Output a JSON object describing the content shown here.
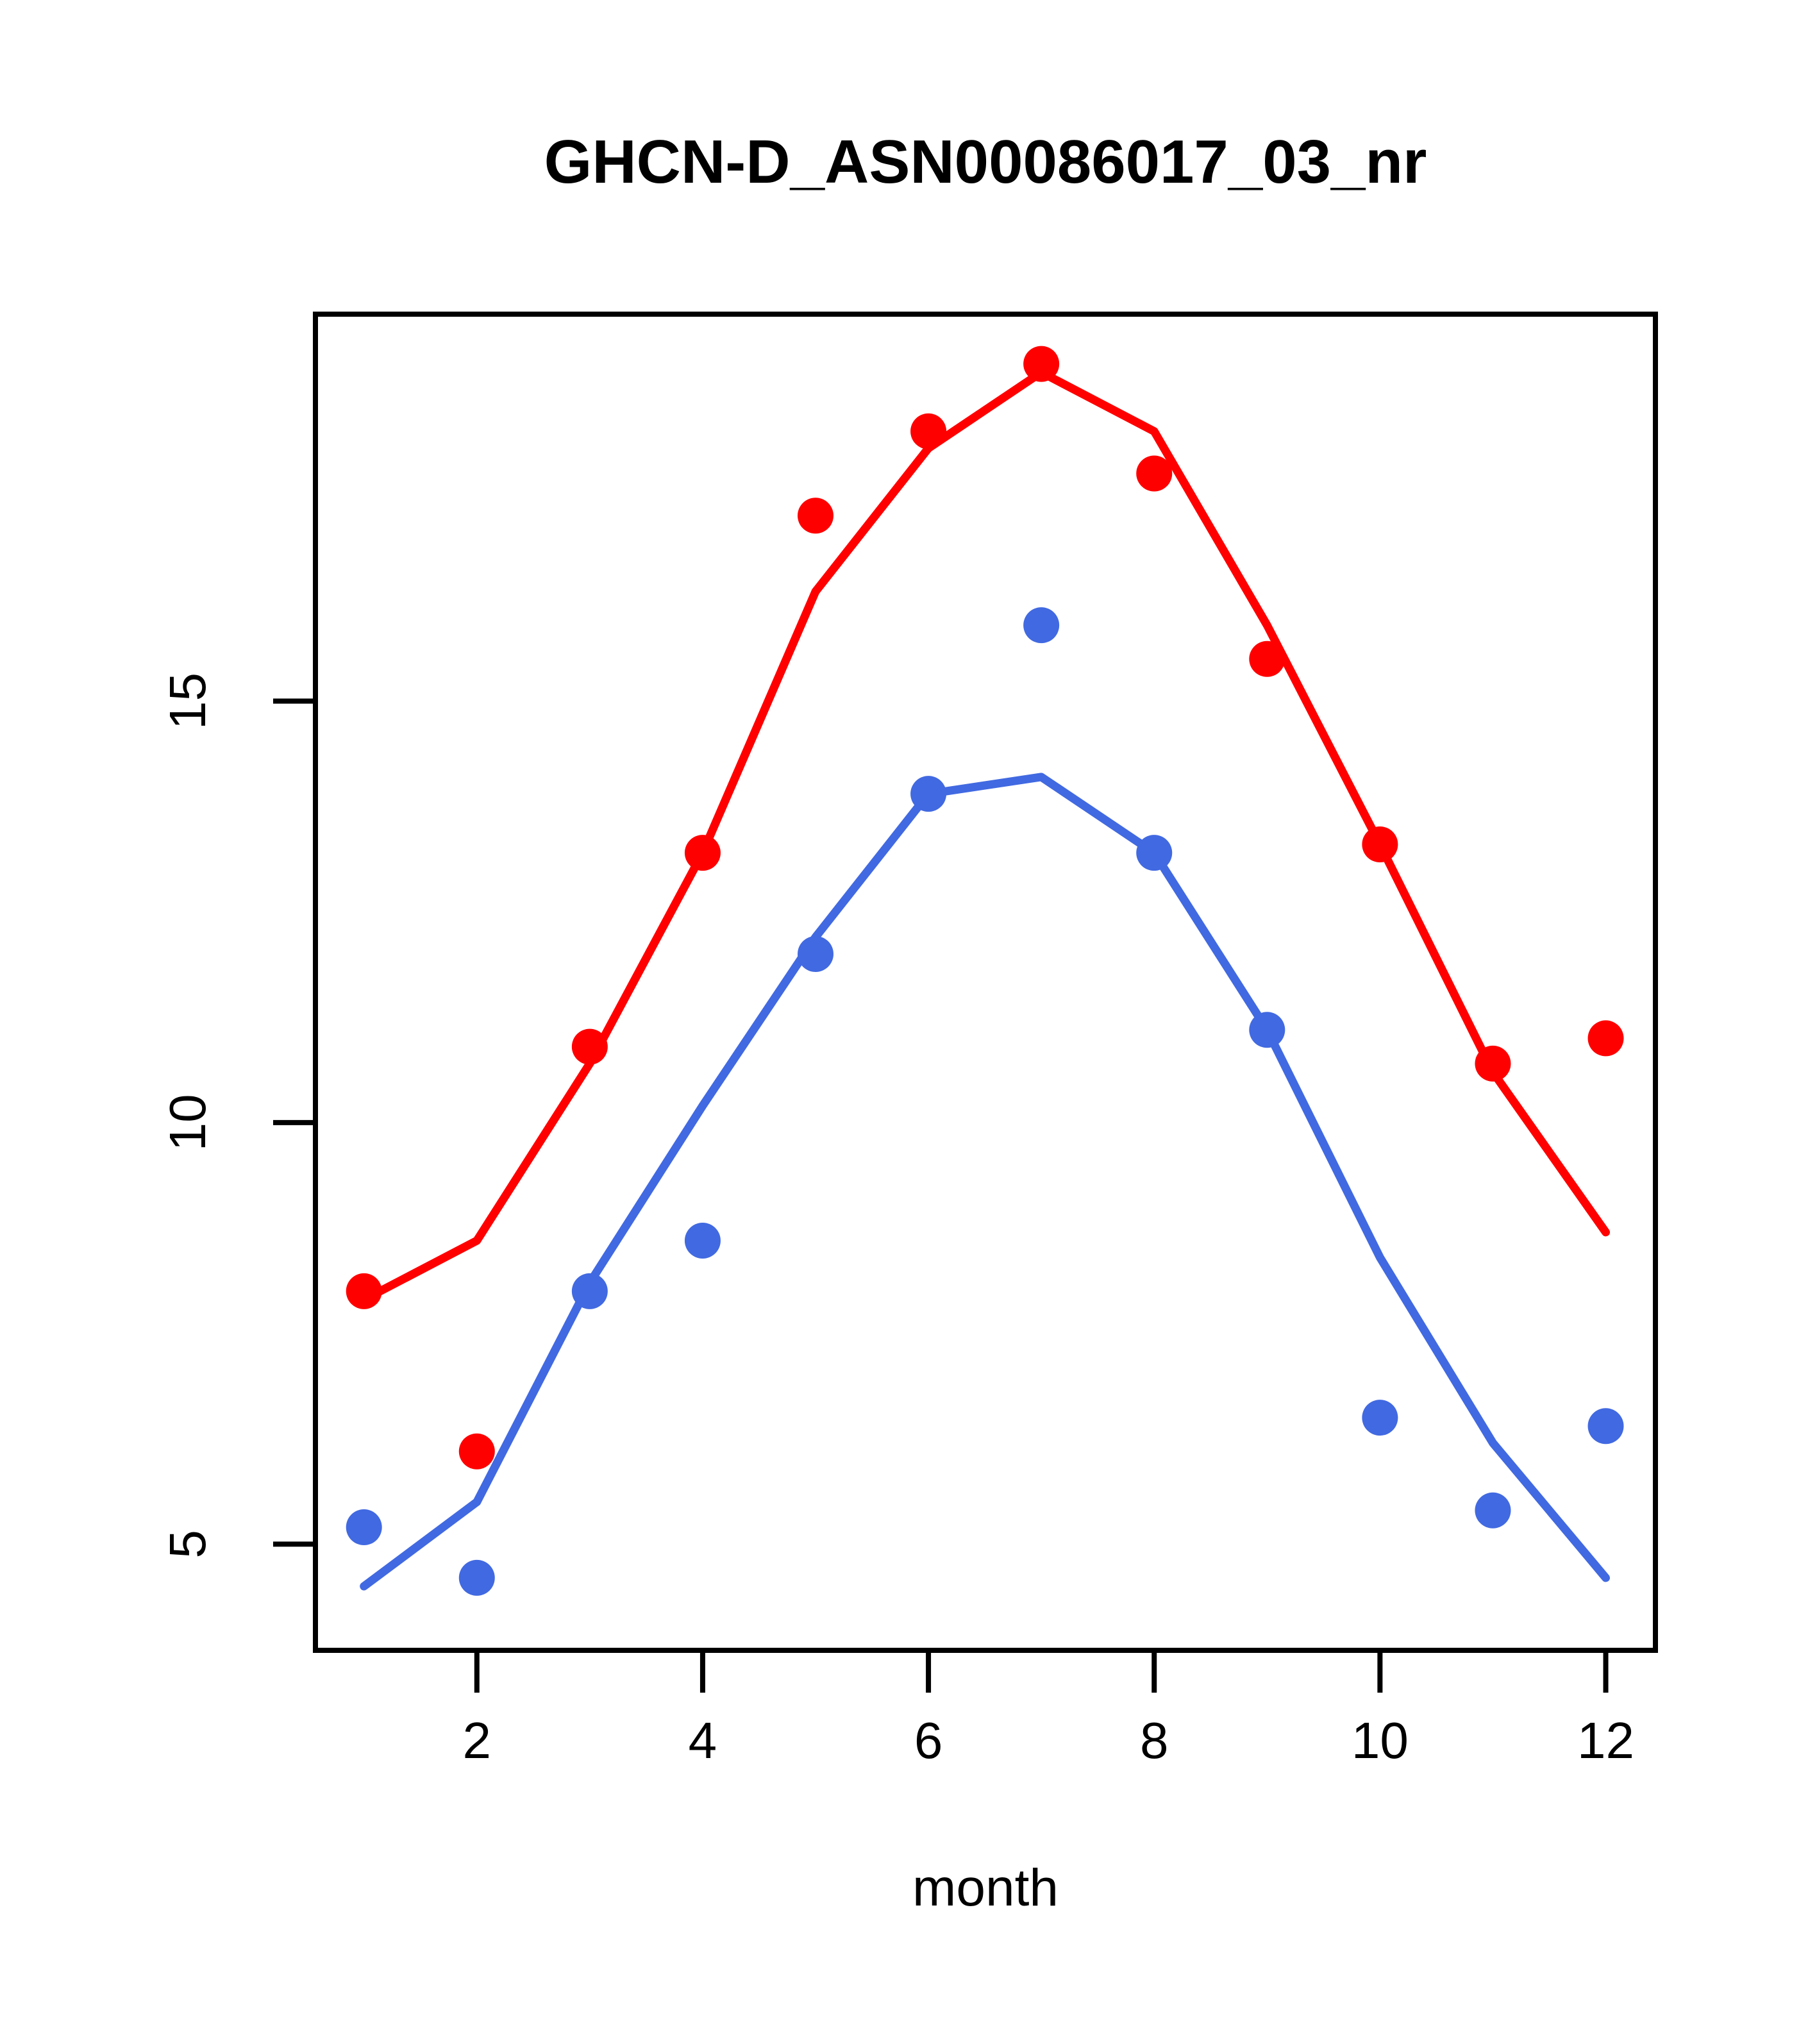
{
  "chart_data": {
    "type": "line",
    "title": "GHCN-D_ASN00086017_03_nr",
    "xlabel": "month",
    "ylabel": "",
    "x": [
      1,
      2,
      3,
      4,
      5,
      6,
      7,
      8,
      9,
      10,
      11,
      12
    ],
    "xlim": [
      0.57,
      12.44
    ],
    "ylim": [
      3.74,
      19.59
    ],
    "x_ticks": [
      "2",
      "4",
      "6",
      "8",
      "10",
      "12"
    ],
    "x_tick_values": [
      2,
      4,
      6,
      8,
      10,
      12
    ],
    "y_ticks": [
      "5",
      "10",
      "15"
    ],
    "y_tick_values": [
      5,
      10,
      15
    ],
    "grid": false,
    "legend_position": "none",
    "colors": {
      "red_series": "#FF0000",
      "blue_series": "#4169E1",
      "axis": "#000000",
      "background": "#FFFFFF"
    },
    "series": [
      {
        "name": "red-points",
        "kind": "scatter",
        "color": "#FF0000",
        "values": [
          8.0,
          6.1,
          10.9,
          13.2,
          17.2,
          18.2,
          19.0,
          17.7,
          15.5,
          13.3,
          10.7,
          11.0
        ]
      },
      {
        "name": "red-line",
        "kind": "line",
        "color": "#FF0000",
        "values": [
          7.9,
          8.6,
          10.7,
          13.2,
          16.3,
          18.0,
          18.9,
          18.2,
          15.9,
          13.3,
          10.6,
          8.7
        ]
      },
      {
        "name": "blue-points",
        "kind": "scatter",
        "color": "#4169E1",
        "values": [
          5.2,
          4.6,
          8.0,
          8.6,
          12.0,
          13.9,
          15.9,
          13.2,
          11.1,
          6.5,
          5.4,
          6.4
        ]
      },
      {
        "name": "blue-line",
        "kind": "line",
        "color": "#4169E1",
        "values": [
          4.5,
          5.5,
          8.1,
          10.2,
          12.2,
          13.9,
          14.1,
          13.2,
          11.1,
          8.4,
          6.2,
          4.6
        ]
      }
    ]
  }
}
